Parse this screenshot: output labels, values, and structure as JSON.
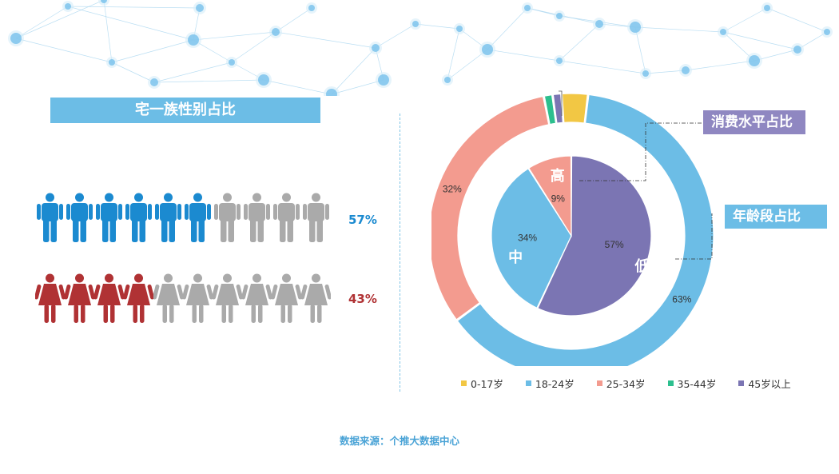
{
  "gender_section": {
    "title": "宅一族性别占比",
    "male": {
      "percent_label": "57%",
      "filled_count": 6,
      "total": 10,
      "fill_color": "#1b8ad0",
      "empty_color": "#aaaaaa"
    },
    "female": {
      "percent_label": "43%",
      "filled_count": 4,
      "total": 10,
      "fill_color": "#b03234",
      "empty_color": "#aaaaaa"
    }
  },
  "tags": {
    "consumption": "消费水平占比",
    "age": "年龄段占比"
  },
  "legend": [
    {
      "label": "0-17岁",
      "color": "#f2c744"
    },
    {
      "label": "18-24岁",
      "color": "#6cbde6"
    },
    {
      "label": "25-34岁",
      "color": "#f39b8f"
    },
    {
      "label": "35-44岁",
      "color": "#2cbf8e"
    },
    {
      "label": "45岁以上",
      "color": "#7b75b3"
    }
  ],
  "source_text": "数据来源：个推大数据中心",
  "chart_data": [
    {
      "type": "pie",
      "title": "宅一族性别占比",
      "categories": [
        "男",
        "女"
      ],
      "values": [
        57,
        43
      ]
    },
    {
      "type": "pie",
      "title": "年龄段占比",
      "categories": [
        "0-17岁",
        "18-24岁",
        "25-34岁",
        "35-44岁",
        "45岁以上"
      ],
      "values": [
        3,
        63,
        32,
        1,
        1
      ],
      "labels": [
        "3%",
        "63%",
        "32%",
        "1%",
        "1%"
      ],
      "colors": [
        "#f2c744",
        "#6cbde6",
        "#f39b8f",
        "#2cbf8e",
        "#7b75b3"
      ]
    },
    {
      "type": "pie",
      "title": "消费水平占比",
      "categories": [
        "高",
        "中",
        "低"
      ],
      "values": [
        9,
        34,
        57
      ],
      "labels": [
        "9%",
        "34%",
        "57%"
      ],
      "colors": [
        "#f39b8f",
        "#6cbde6",
        "#7b75b3"
      ]
    }
  ]
}
